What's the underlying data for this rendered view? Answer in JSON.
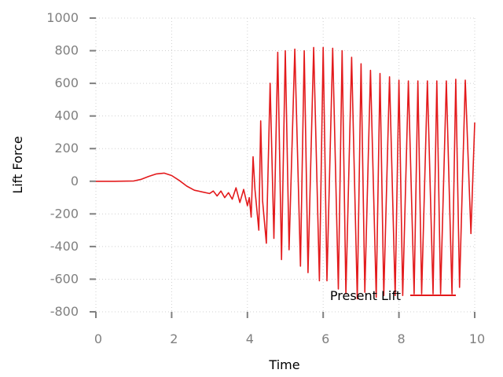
{
  "chart_data": {
    "type": "line",
    "title": "",
    "xlabel": "Time",
    "ylabel": "Lift Force",
    "xlim": [
      0,
      10
    ],
    "ylim": [
      -800,
      1000
    ],
    "x_ticks": [
      0,
      2,
      4,
      6,
      8,
      10
    ],
    "x_tick_labels": [
      "0",
      "2",
      "4",
      "6",
      "8",
      "10"
    ],
    "y_ticks": [
      -800,
      -600,
      -400,
      -200,
      0,
      200,
      400,
      600,
      800,
      1000
    ],
    "y_tick_labels": [
      "-800",
      "-600",
      "-400",
      "-200",
      "0",
      "200",
      "400",
      "600",
      "800",
      "1000"
    ],
    "grid": true,
    "legend_position": "bottom-right",
    "series": [
      {
        "name": "Present Lift",
        "color": "#e31a1c",
        "x": [
          0,
          0.5,
          1.0,
          1.2,
          1.4,
          1.6,
          1.8,
          2.0,
          2.2,
          2.4,
          2.6,
          2.8,
          3.0,
          3.1,
          3.2,
          3.3,
          3.4,
          3.5,
          3.6,
          3.7,
          3.8,
          3.9,
          4.0,
          4.05,
          4.1,
          4.15,
          4.2,
          4.3,
          4.35,
          4.4,
          4.5,
          4.6,
          4.7,
          4.8,
          4.9,
          5.0,
          5.1,
          5.25,
          5.4,
          5.5,
          5.6,
          5.75,
          5.9,
          6.0,
          6.1,
          6.25,
          6.4,
          6.5,
          6.6,
          6.75,
          6.9,
          7.0,
          7.1,
          7.25,
          7.4,
          7.5,
          7.6,
          7.75,
          7.9,
          8.0,
          8.1,
          8.25,
          8.4,
          8.5,
          8.6,
          8.75,
          8.9,
          9.0,
          9.1,
          9.25,
          9.4,
          9.5,
          9.6,
          9.75,
          9.9,
          10.0
        ],
        "y": [
          0,
          0,
          2,
          12,
          30,
          45,
          50,
          35,
          5,
          -30,
          -55,
          -65,
          -75,
          -60,
          -90,
          -60,
          -100,
          -70,
          -110,
          -40,
          -130,
          -50,
          -150,
          -100,
          -220,
          150,
          -50,
          -300,
          370,
          -120,
          -380,
          600,
          -350,
          790,
          -480,
          800,
          -420,
          810,
          -520,
          800,
          -560,
          820,
          -610,
          820,
          -610,
          815,
          -660,
          800,
          -690,
          760,
          -720,
          720,
          -680,
          680,
          -710,
          660,
          -700,
          640,
          -700,
          620,
          -700,
          615,
          -690,
          615,
          -690,
          615,
          -690,
          615,
          -690,
          615,
          -690,
          625,
          -650,
          620,
          -320,
          360
        ]
      }
    ]
  }
}
